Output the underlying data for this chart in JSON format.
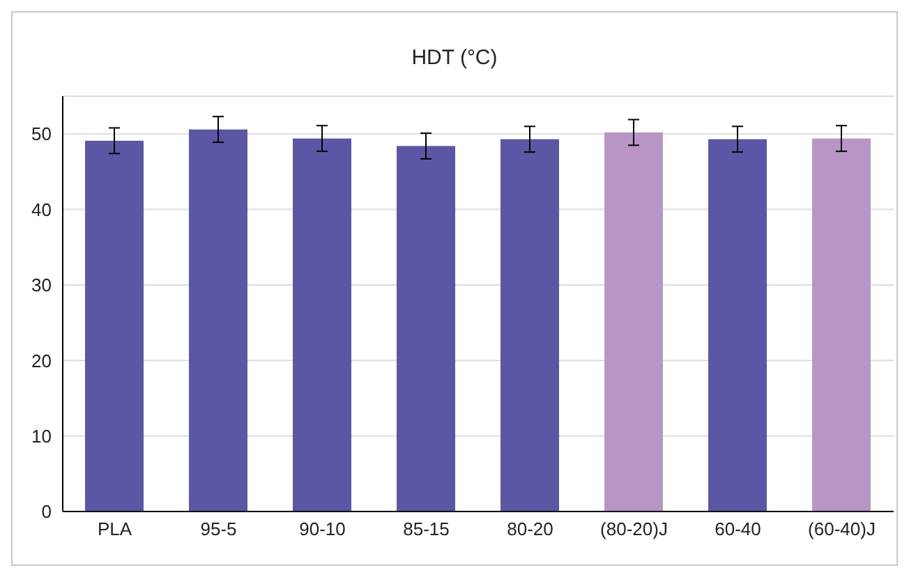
{
  "chart_data": {
    "type": "bar",
    "title": "HDT (°C)",
    "categories": [
      "PLA",
      "95-5",
      "90-10",
      "85-15",
      "80-20",
      "(80-20)J",
      "60-40",
      "(60-40)J"
    ],
    "values": [
      49.1,
      50.6,
      49.4,
      48.4,
      49.3,
      50.2,
      49.3,
      49.4
    ],
    "colors": [
      "#5b57a5",
      "#5b57a5",
      "#5b57a5",
      "#5b57a5",
      "#5b57a5",
      "#b995c6",
      "#5b57a5",
      "#b995c6"
    ],
    "errors": [
      1.7,
      1.7,
      1.7,
      1.7,
      1.7,
      1.7,
      1.7,
      1.7
    ],
    "ylim": [
      0,
      55
    ],
    "yticks": [
      0,
      10,
      20,
      30,
      40,
      50
    ],
    "grid": "y"
  }
}
